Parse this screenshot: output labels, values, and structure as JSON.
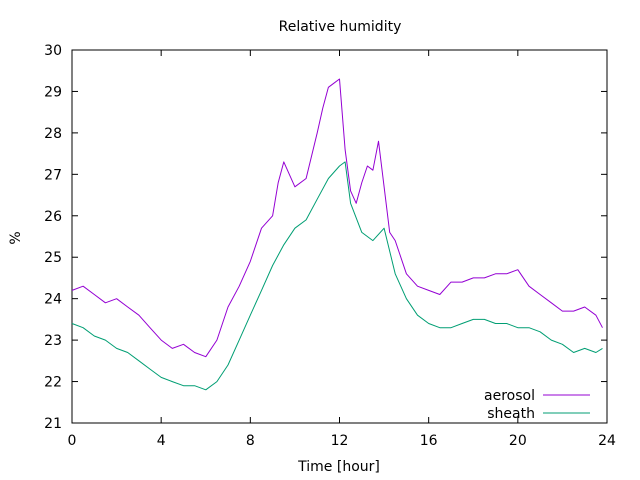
{
  "chart_data": {
    "type": "line",
    "title": "Relative humidity",
    "xlabel": "Time [hour]",
    "ylabel": "%",
    "xlim": [
      0,
      24
    ],
    "ylim": [
      21,
      30
    ],
    "xticks": [
      0,
      4,
      8,
      12,
      16,
      20,
      24
    ],
    "yticks": [
      21,
      22,
      23,
      24,
      25,
      26,
      27,
      28,
      29,
      30
    ],
    "grid": false,
    "legend_position": "bottom-right",
    "series": [
      {
        "name": "aerosol",
        "color": "#9400d3",
        "x": [
          0,
          0.5,
          1,
          1.5,
          2,
          2.5,
          3,
          3.5,
          4,
          4.5,
          5,
          5.5,
          6,
          6.5,
          7,
          7.5,
          8,
          8.5,
          9,
          9.25,
          9.5,
          9.75,
          10,
          10.5,
          11,
          11.25,
          11.5,
          11.75,
          12,
          12.25,
          12.5,
          12.75,
          13,
          13.25,
          13.5,
          13.75,
          14,
          14.25,
          14.5,
          15,
          15.5,
          16,
          16.5,
          17,
          17.5,
          18,
          18.5,
          19,
          19.5,
          20,
          20.5,
          21,
          21.5,
          22,
          22.5,
          23,
          23.5,
          23.8
        ],
        "y": [
          24.2,
          24.3,
          24.1,
          23.9,
          24.0,
          23.8,
          23.6,
          23.3,
          23.0,
          22.8,
          22.9,
          22.7,
          22.6,
          23.0,
          23.8,
          24.3,
          24.9,
          25.7,
          26.0,
          26.8,
          27.3,
          27.0,
          26.7,
          26.9,
          28.0,
          28.6,
          29.1,
          29.2,
          29.3,
          27.6,
          26.6,
          26.3,
          26.8,
          27.2,
          27.1,
          27.8,
          26.7,
          25.6,
          25.4,
          24.6,
          24.3,
          24.2,
          24.1,
          24.4,
          24.4,
          24.5,
          24.5,
          24.6,
          24.6,
          24.7,
          24.3,
          24.1,
          23.9,
          23.7,
          23.7,
          23.8,
          23.6,
          23.3
        ]
      },
      {
        "name": "sheath",
        "color": "#009e73",
        "x": [
          0,
          0.5,
          1,
          1.5,
          2,
          2.5,
          3,
          3.5,
          4,
          4.5,
          5,
          5.5,
          6,
          6.5,
          7,
          7.5,
          8,
          8.5,
          9,
          9.5,
          10,
          10.5,
          11,
          11.5,
          12,
          12.25,
          12.5,
          13,
          13.5,
          14,
          14.5,
          15,
          15.5,
          16,
          16.5,
          17,
          17.5,
          18,
          18.5,
          19,
          19.5,
          20,
          20.5,
          21,
          21.5,
          22,
          22.5,
          23,
          23.5,
          23.8
        ],
        "y": [
          23.4,
          23.3,
          23.1,
          23.0,
          22.8,
          22.7,
          22.5,
          22.3,
          22.1,
          22.0,
          21.9,
          21.9,
          21.8,
          22.0,
          22.4,
          23.0,
          23.6,
          24.2,
          24.8,
          25.3,
          25.7,
          25.9,
          26.4,
          26.9,
          27.2,
          27.3,
          26.3,
          25.6,
          25.4,
          25.7,
          24.6,
          24.0,
          23.6,
          23.4,
          23.3,
          23.3,
          23.4,
          23.5,
          23.5,
          23.4,
          23.4,
          23.3,
          23.3,
          23.2,
          23.0,
          22.9,
          22.7,
          22.8,
          22.7,
          22.8
        ]
      }
    ]
  }
}
